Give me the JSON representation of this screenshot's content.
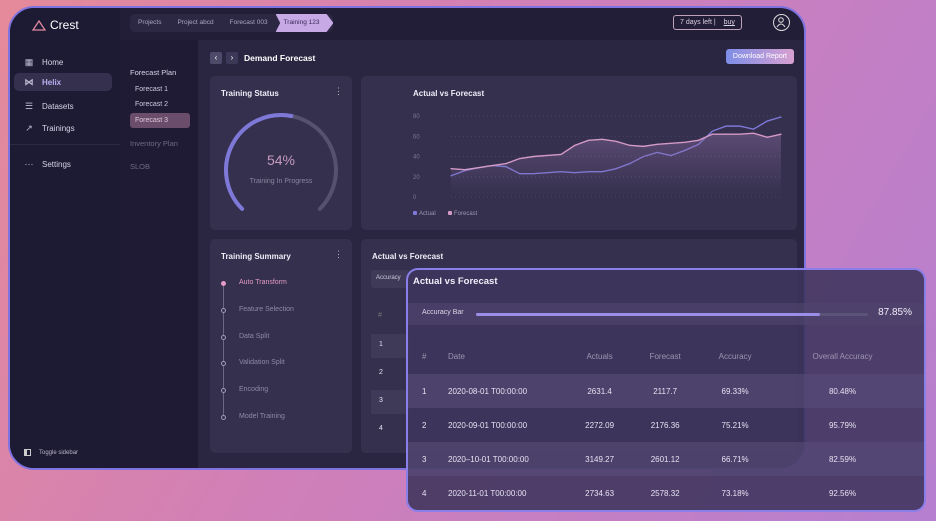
{
  "app": {
    "name": "Crest"
  },
  "breadcrumb": [
    "Projects",
    "Project abcd",
    "Forecast 003",
    "Training 123"
  ],
  "trial": {
    "text": "7 days left",
    "buy": "buy"
  },
  "sidebar": {
    "items": [
      {
        "label": "Home",
        "icon": "grid-icon"
      },
      {
        "label": "Helix",
        "icon": "helix-icon",
        "active": true
      },
      {
        "label": "Datasets",
        "icon": "database-icon"
      },
      {
        "label": "Trainings",
        "icon": "trend-icon"
      },
      {
        "label": "Settings",
        "icon": "more-icon"
      }
    ],
    "toggle": "Toggle sidebar"
  },
  "subnav": {
    "heading": "Forecast Plan",
    "items": [
      "Forecast 1",
      "Forecast 2",
      "Forecast 3"
    ],
    "selected": "Forecast 3",
    "other": [
      "Inventory Plan",
      "SLOB"
    ]
  },
  "page": {
    "title": "Demand Forecast",
    "download": "Download Report"
  },
  "training_status": {
    "title": "Training Status",
    "percent": "54%",
    "progress": 0.54,
    "label": "Training In Progress"
  },
  "chart_data": {
    "type": "line",
    "title": "Actual vs Forecast",
    "ylim": [
      0,
      80
    ],
    "yticks": [
      "0",
      "20",
      "40",
      "60",
      "80"
    ],
    "grid": true,
    "legend": "bottom-left",
    "series": [
      {
        "name": "Actual",
        "color": "#7e78d8",
        "values": [
          21,
          26,
          29,
          31,
          30,
          23,
          23,
          24,
          25,
          24,
          25,
          25,
          28,
          33,
          40,
          44,
          41,
          46,
          52,
          65,
          70,
          70,
          67,
          75,
          79
        ]
      },
      {
        "name": "Forecast",
        "color": "#d49ac6",
        "values": [
          28,
          27,
          29,
          31,
          33,
          38,
          40,
          41,
          42,
          51,
          56,
          57,
          55,
          51,
          50,
          52,
          53,
          54,
          56,
          62,
          62,
          62,
          63,
          59,
          62
        ]
      }
    ]
  },
  "training_summary": {
    "title": "Training Summary",
    "steps": [
      "Auto Transform",
      "Feature Selection",
      "Data Split",
      "Validation Split",
      "Encoding",
      "Model Training"
    ],
    "active": 0
  },
  "avf_card": {
    "title": "Actual vs Forecast",
    "tab": "Accuracy",
    "rows": [
      "#",
      "1",
      "2",
      "3",
      "4"
    ]
  },
  "overlay": {
    "title": "Actual vs Forecast",
    "acc_label": "Accuracy Bar",
    "acc_value": "87.85%",
    "acc_fraction": 0.8785,
    "columns": [
      "#",
      "Date",
      "Actuals",
      "Forecast",
      "Accuracy",
      "Overall Accuracy"
    ],
    "rows": [
      [
        "1",
        "2020-08-01 T00:00:00",
        "2631.4",
        "2117.7",
        "69.33%",
        "80.48%"
      ],
      [
        "2",
        "2020-09-01 T00:00:00",
        "2272.09",
        "2176.36",
        "75.21%",
        "95.79%"
      ],
      [
        "3",
        "2020–10-01 T00:00:00",
        "3149.27",
        "2601.12",
        "66.71%",
        "82.59%"
      ],
      [
        "4",
        "2020-11-01 T00:00:00",
        "2734.63",
        "2578.32",
        "73.18%",
        "92.56%"
      ]
    ]
  }
}
